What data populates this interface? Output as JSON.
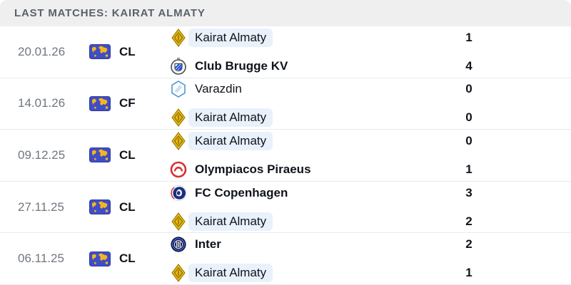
{
  "header": {
    "title": "LAST MATCHES: KAIRAT ALMATY"
  },
  "colors": {
    "header_bg": "#efefef",
    "header_text": "#5a6168",
    "date_text": "#70767e",
    "team_text": "#10141c",
    "highlight_bg": "#e9f1fb",
    "divider": "#e8eaed",
    "flag_bg": "#3f4ec4",
    "flag_map": "#f5b51f"
  },
  "matches": [
    {
      "date": "20.01.26",
      "competition_code": "CL",
      "competition_icon": "world-flag-icon",
      "teams": [
        {
          "name": "Kairat Almaty",
          "score": "1",
          "logo_icon": "kairat-almaty-logo",
          "highlighted": true,
          "bold": false
        },
        {
          "name": "Club Brugge KV",
          "score": "4",
          "logo_icon": "club-brugge-logo",
          "highlighted": false,
          "bold": true
        }
      ]
    },
    {
      "date": "14.01.26",
      "competition_code": "CF",
      "competition_icon": "world-flag-icon",
      "teams": [
        {
          "name": "Varazdin",
          "score": "0",
          "logo_icon": "varazdin-logo",
          "highlighted": false,
          "bold": false
        },
        {
          "name": "Kairat Almaty",
          "score": "0",
          "logo_icon": "kairat-almaty-logo",
          "highlighted": true,
          "bold": false
        }
      ]
    },
    {
      "date": "09.12.25",
      "competition_code": "CL",
      "competition_icon": "world-flag-icon",
      "teams": [
        {
          "name": "Kairat Almaty",
          "score": "0",
          "logo_icon": "kairat-almaty-logo",
          "highlighted": true,
          "bold": false
        },
        {
          "name": "Olympiacos Piraeus",
          "score": "1",
          "logo_icon": "olympiacos-logo",
          "highlighted": false,
          "bold": true
        }
      ]
    },
    {
      "date": "27.11.25",
      "competition_code": "CL",
      "competition_icon": "world-flag-icon",
      "teams": [
        {
          "name": "FC Copenhagen",
          "score": "3",
          "logo_icon": "fc-copenhagen-logo",
          "highlighted": false,
          "bold": true
        },
        {
          "name": "Kairat Almaty",
          "score": "2",
          "logo_icon": "kairat-almaty-logo",
          "highlighted": true,
          "bold": false
        }
      ]
    },
    {
      "date": "06.11.25",
      "competition_code": "CL",
      "competition_icon": "world-flag-icon",
      "teams": [
        {
          "name": "Inter",
          "score": "2",
          "logo_icon": "inter-logo",
          "highlighted": false,
          "bold": true
        },
        {
          "name": "Kairat Almaty",
          "score": "1",
          "logo_icon": "kairat-almaty-logo",
          "highlighted": true,
          "bold": false
        }
      ]
    }
  ]
}
